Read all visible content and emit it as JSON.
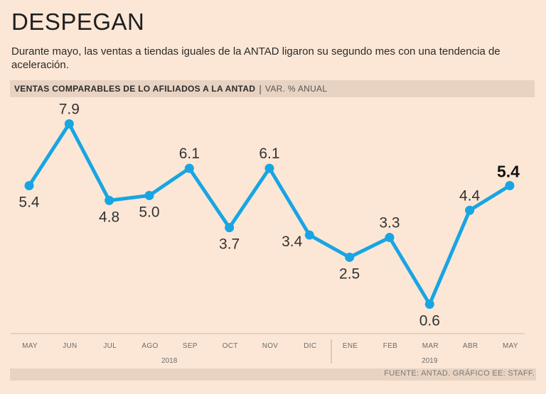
{
  "title": "DESPEGAN",
  "subtitle": "Durante mayo, las ventas a tiendas iguales de la ANTAD ligaron su segundo mes con una tendencia de aceleración.",
  "header": {
    "main": "VENTAS COMPARABLES DE LO AFILIADOS A LA ANTAD",
    "separator": "|",
    "sub": "VAR. % ANUAL"
  },
  "source": "FUENTE: ANTAD. GRÁFICO EE: STAFF.",
  "colors": {
    "line": "#18a5e3",
    "background": "#fce7d6",
    "bar": "#e8d3c2"
  },
  "chart_data": {
    "type": "line",
    "title": "VENTAS COMPARABLES DE LO AFILIADOS A LA ANTAD",
    "ylabel": "VAR. % ANUAL",
    "xlabel": "",
    "categories": [
      "MAY",
      "JUN",
      "JUL",
      "AGO",
      "SEP",
      "OCT",
      "NOV",
      "DIC",
      "ENE",
      "FEB",
      "MAR",
      "ABR",
      "MAY"
    ],
    "values": [
      5.4,
      7.9,
      4.8,
      5.0,
      6.1,
      3.7,
      6.1,
      3.4,
      2.5,
      3.3,
      0.6,
      4.4,
      5.4
    ],
    "labels": [
      "5.4",
      "7.9",
      "4.8",
      "5.0",
      "6.1",
      "3.7",
      "6.1",
      "3.4",
      "2.5",
      "3.3",
      "0.6",
      "4.4",
      "5.4"
    ],
    "label_positions": [
      "below",
      "above",
      "below",
      "below",
      "above",
      "below",
      "above",
      "left",
      "below",
      "above",
      "below",
      "above",
      "above"
    ],
    "highlight_last": true,
    "year_groups": [
      {
        "label": "2018",
        "start": 0,
        "end": 7
      },
      {
        "label": "2019",
        "start": 8,
        "end": 12
      }
    ],
    "grid": false
  }
}
